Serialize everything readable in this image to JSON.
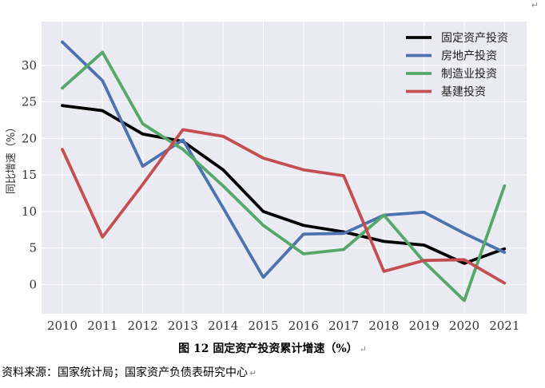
{
  "chart_data": {
    "type": "line",
    "title": "图 12 固定资产投资累计增速（%）",
    "xlabel": "",
    "ylabel": "同比增速（%）",
    "categories": [
      "2010",
      "2011",
      "2012",
      "2013",
      "2014",
      "2015",
      "2016",
      "2017",
      "2018",
      "2019",
      "2020",
      "2021"
    ],
    "ylim": [
      -4,
      36
    ],
    "yticks": [
      0,
      5,
      10,
      15,
      20,
      25,
      30
    ],
    "grid": true,
    "legend_position": "top-right",
    "series": [
      {
        "name": "固定资产投资",
        "color": "#000000",
        "values": [
          24.5,
          23.8,
          20.6,
          19.6,
          15.7,
          10.0,
          8.1,
          7.2,
          5.9,
          5.4,
          2.9,
          4.9
        ]
      },
      {
        "name": "房地产投资",
        "color": "#4c72b0",
        "values": [
          33.2,
          27.9,
          16.2,
          19.8,
          10.5,
          1.0,
          6.9,
          7.0,
          9.5,
          9.9,
          7.0,
          4.4
        ]
      },
      {
        "name": "制造业投资",
        "color": "#55a868",
        "values": [
          26.9,
          31.8,
          22.0,
          18.5,
          13.5,
          8.1,
          4.2,
          4.8,
          9.5,
          3.1,
          -2.2,
          13.5
        ]
      },
      {
        "name": "基建投资",
        "color": "#c44e52",
        "values": [
          18.5,
          6.5,
          13.7,
          21.2,
          20.3,
          17.3,
          15.7,
          14.9,
          1.8,
          3.3,
          3.4,
          0.2
        ]
      }
    ]
  },
  "caption": "图 12 固定资产投资累计增速（%）",
  "source": "资料来源：国家统计局；国家资产负债表研究中心",
  "colors": {
    "plot_bg": "#eaeaf2",
    "grid": "#ffffff",
    "axis_text": "#333333"
  }
}
